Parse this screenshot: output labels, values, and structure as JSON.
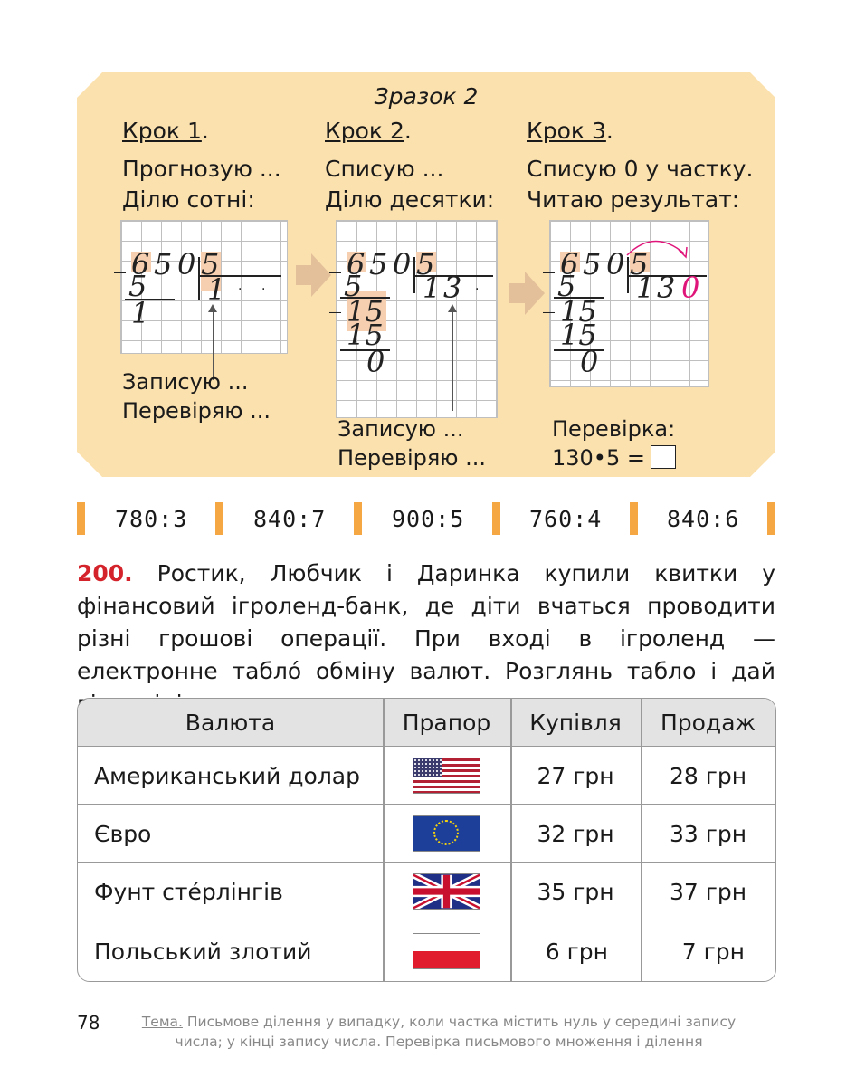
{
  "sample": {
    "title": "Зразок 2",
    "steps": [
      {
        "label": "Крок 1",
        "line1": "Прогнозую ...",
        "line2": "Ділю сотні:",
        "note1": "Записую ...",
        "note2": "Перевіряю ..."
      },
      {
        "label": "Крок 2",
        "line1": "Списую ...",
        "line2": "Ділю десятки:",
        "note1": "Записую ...",
        "note2": "Перевіряю ..."
      },
      {
        "label": "Крок 3",
        "line1": "Списую 0 у частку.",
        "line2": "Читаю результат:",
        "note1": "Перевірка:",
        "note2": "130•5 ="
      }
    ],
    "computation": {
      "dividend": [
        "6",
        "5",
        "0"
      ],
      "divisor": "5",
      "step1": {
        "quotient": "1",
        "sub": "5",
        "rem": "1"
      },
      "step2": {
        "quotient": [
          "1",
          "3"
        ],
        "sub1": "5",
        "bring": "15",
        "sub2": "15",
        "rem": "0"
      },
      "step3": {
        "quotient": [
          "1",
          "3"
        ],
        "quotient_zero": "0",
        "sub1": "5",
        "bring": "15",
        "sub2": "15",
        "rem": "0"
      }
    },
    "colors": {
      "box": "#fbe1ae",
      "highlight": "#f6cfb0",
      "accent_zero": "#e0157a"
    }
  },
  "examples": [
    "780:3",
    "840:7",
    "900:5",
    "760:4",
    "840:6"
  ],
  "task": {
    "number": "200.",
    "text": "Ростик, Любчик і Даринка купили квитки у фінансовий ігроленд-банк, де діти вчаться проводити різні грошові операції. При вході в ігроленд — електронне табло́ обміну валют. Розглянь табло і дай відповіді на запитання."
  },
  "table": {
    "headers": [
      "Валюта",
      "Прапор",
      "Купівля",
      "Продаж"
    ],
    "rows": [
      {
        "currency": "Американський долар",
        "flag": "us-flag-icon",
        "buy": "27 грн",
        "sell": "28 грн"
      },
      {
        "currency": "Євро",
        "flag": "eu-flag-icon",
        "buy": "32 грн",
        "sell": "33 грн"
      },
      {
        "currency": "Фунт сте́рлінгів",
        "flag": "uk-flag-icon",
        "buy": "35 грн",
        "sell": "37 грн"
      },
      {
        "currency": "Польський злотий",
        "flag": "pl-flag-icon",
        "buy": "6 грн",
        "sell": "7 грн"
      }
    ]
  },
  "footer": {
    "page_number": "78",
    "theme_label": "Тема.",
    "theme_text": "Письмове ділення у випадку, коли частка містить нуль у середині запису числа; у кінці запису числа. Перевірка письмового множення і ділення"
  }
}
